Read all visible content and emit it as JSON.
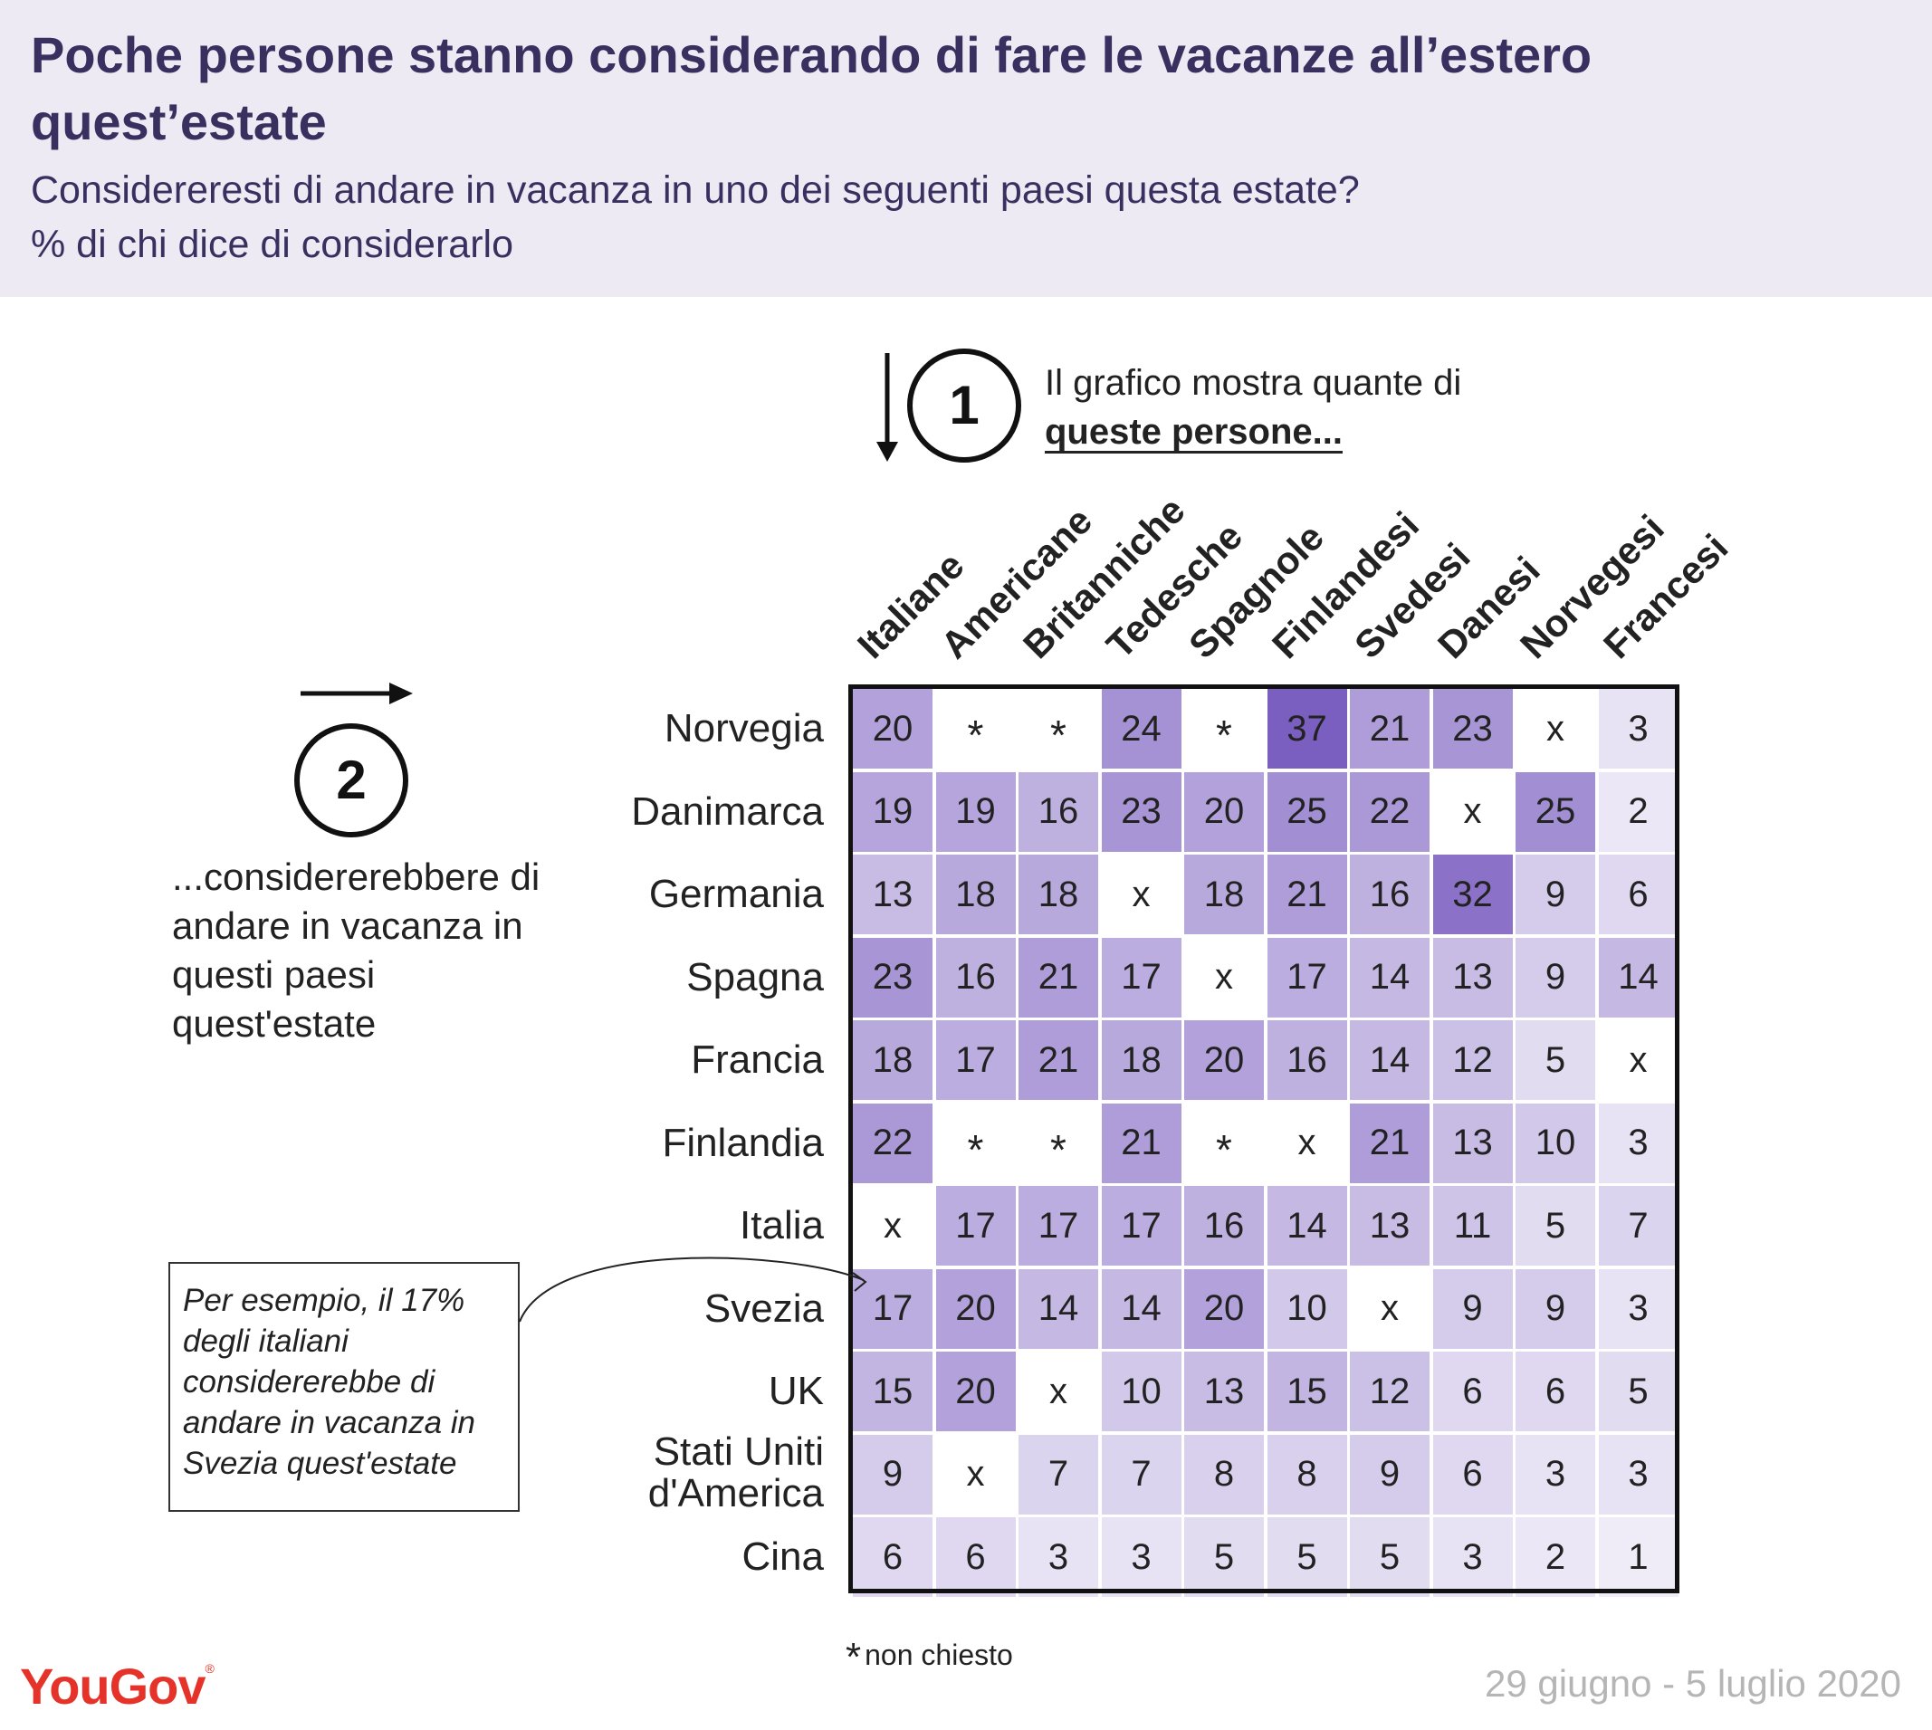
{
  "title": "Poche persone stanno considerando di fare le vacanze all’estero quest’estate",
  "subtitle_line1": "Considereresti di andare in vacanza in uno dei seguenti paesi questa estate?",
  "subtitle_line2": "% di chi dice di considerarlo",
  "step1": {
    "number": "1",
    "text_line1": "Il grafico mostra quante di",
    "text_line2": "queste persone..."
  },
  "step2": {
    "number": "2",
    "text": "...considererebbere di andare in vacanza in questi paesi quest'estate"
  },
  "callout": "Per esempio, il 17% degli italiani considererebbe di andare in vacanza in Svezia quest'estate",
  "footnote": {
    "symbol": "*",
    "text": "non chiesto"
  },
  "logo": {
    "text": "YouGov",
    "mark": "®"
  },
  "date": "29 giugno - 5 luglio 2020",
  "colors": {
    "header_bg": "#edeaf4",
    "title": "#3a3060",
    "cell_max": "#7b5fc0",
    "logo": "#e5332a"
  },
  "chart_data": {
    "type": "heatmap",
    "columns": [
      "Italiane",
      "Americane",
      "Britanniche",
      "Tedesche",
      "Spagnole",
      "Finlandesi",
      "Svedesi",
      "Danesi",
      "Norvegesi",
      "Francesi"
    ],
    "rows": [
      "Norvegia",
      "Danimarca",
      "Germania",
      "Spagna",
      "Francia",
      "Finlandia",
      "Italia",
      "Svezia",
      "UK",
      "Stati Uniti d'America",
      "Cina"
    ],
    "values": [
      [
        "20",
        "*",
        "*",
        "24",
        "*",
        "37",
        "21",
        "23",
        "x",
        "3"
      ],
      [
        "19",
        "19",
        "16",
        "23",
        "20",
        "25",
        "22",
        "x",
        "25",
        "2"
      ],
      [
        "13",
        "18",
        "18",
        "x",
        "18",
        "21",
        "16",
        "32",
        "9",
        "6"
      ],
      [
        "23",
        "16",
        "21",
        "17",
        "x",
        "17",
        "14",
        "13",
        "9",
        "14"
      ],
      [
        "18",
        "17",
        "21",
        "18",
        "20",
        "16",
        "14",
        "12",
        "5",
        "x"
      ],
      [
        "22",
        "*",
        "*",
        "21",
        "*",
        "x",
        "21",
        "13",
        "10",
        "3"
      ],
      [
        "x",
        "17",
        "17",
        "17",
        "16",
        "14",
        "13",
        "11",
        "5",
        "7"
      ],
      [
        "17",
        "20",
        "14",
        "14",
        "20",
        "10",
        "x",
        "9",
        "9",
        "3"
      ],
      [
        "15",
        "20",
        "x",
        "10",
        "13",
        "15",
        "12",
        "6",
        "6",
        "5"
      ],
      [
        "9",
        "x",
        "7",
        "7",
        "8",
        "8",
        "9",
        "6",
        "3",
        "3"
      ],
      [
        "6",
        "6",
        "3",
        "3",
        "5",
        "5",
        "5",
        "3",
        "2",
        "1"
      ]
    ],
    "value_range": [
      0,
      37
    ],
    "unit": "%"
  }
}
